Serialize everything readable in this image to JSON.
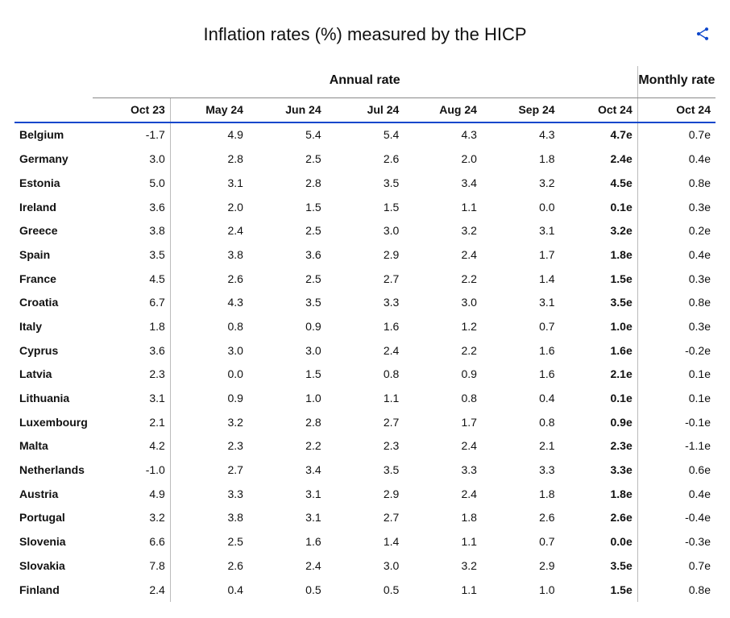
{
  "title": "Inflation rates (%) measured by the HICP",
  "groups": {
    "annual": "Annual rate",
    "monthly": "Monthly rate"
  },
  "columns": [
    "Oct 23",
    "May 24",
    "Jun 24",
    "Jul 24",
    "Aug 24",
    "Sep 24",
    "Oct 24",
    "Oct 24"
  ],
  "bold_data_col_index": 6,
  "rows": [
    {
      "country": "Belgium",
      "values": [
        "-1.7",
        "4.9",
        "5.4",
        "5.4",
        "4.3",
        "4.3",
        "4.7e",
        "0.7e"
      ]
    },
    {
      "country": "Germany",
      "values": [
        "3.0",
        "2.8",
        "2.5",
        "2.6",
        "2.0",
        "1.8",
        "2.4e",
        "0.4e"
      ]
    },
    {
      "country": "Estonia",
      "values": [
        "5.0",
        "3.1",
        "2.8",
        "3.5",
        "3.4",
        "3.2",
        "4.5e",
        "0.8e"
      ]
    },
    {
      "country": "Ireland",
      "values": [
        "3.6",
        "2.0",
        "1.5",
        "1.5",
        "1.1",
        "0.0",
        "0.1e",
        "0.3e"
      ]
    },
    {
      "country": "Greece",
      "values": [
        "3.8",
        "2.4",
        "2.5",
        "3.0",
        "3.2",
        "3.1",
        "3.2e",
        "0.2e"
      ]
    },
    {
      "country": "Spain",
      "values": [
        "3.5",
        "3.8",
        "3.6",
        "2.9",
        "2.4",
        "1.7",
        "1.8e",
        "0.4e"
      ]
    },
    {
      "country": "France",
      "values": [
        "4.5",
        "2.6",
        "2.5",
        "2.7",
        "2.2",
        "1.4",
        "1.5e",
        "0.3e"
      ]
    },
    {
      "country": "Croatia",
      "values": [
        "6.7",
        "4.3",
        "3.5",
        "3.3",
        "3.0",
        "3.1",
        "3.5e",
        "0.8e"
      ]
    },
    {
      "country": "Italy",
      "values": [
        "1.8",
        "0.8",
        "0.9",
        "1.6",
        "1.2",
        "0.7",
        "1.0e",
        "0.3e"
      ]
    },
    {
      "country": "Cyprus",
      "values": [
        "3.6",
        "3.0",
        "3.0",
        "2.4",
        "2.2",
        "1.6",
        "1.6e",
        "-0.2e"
      ]
    },
    {
      "country": "Latvia",
      "values": [
        "2.3",
        "0.0",
        "1.5",
        "0.8",
        "0.9",
        "1.6",
        "2.1e",
        "0.1e"
      ]
    },
    {
      "country": "Lithuania",
      "values": [
        "3.1",
        "0.9",
        "1.0",
        "1.1",
        "0.8",
        "0.4",
        "0.1e",
        "0.1e"
      ]
    },
    {
      "country": "Luxembourg",
      "values": [
        "2.1",
        "3.2",
        "2.8",
        "2.7",
        "1.7",
        "0.8",
        "0.9e",
        "-0.1e"
      ]
    },
    {
      "country": "Malta",
      "values": [
        "4.2",
        "2.3",
        "2.2",
        "2.3",
        "2.4",
        "2.1",
        "2.3e",
        "-1.1e"
      ]
    },
    {
      "country": "Netherlands",
      "values": [
        "-1.0",
        "2.7",
        "3.4",
        "3.5",
        "3.3",
        "3.3",
        "3.3e",
        "0.6e"
      ]
    },
    {
      "country": "Austria",
      "values": [
        "4.9",
        "3.3",
        "3.1",
        "2.9",
        "2.4",
        "1.8",
        "1.8e",
        "0.4e"
      ]
    },
    {
      "country": "Portugal",
      "values": [
        "3.2",
        "3.8",
        "3.1",
        "2.7",
        "1.8",
        "2.6",
        "2.6e",
        "-0.4e"
      ]
    },
    {
      "country": "Slovenia",
      "values": [
        "6.6",
        "2.5",
        "1.6",
        "1.4",
        "1.1",
        "0.7",
        "0.0e",
        "-0.3e"
      ]
    },
    {
      "country": "Slovakia",
      "values": [
        "7.8",
        "2.6",
        "2.4",
        "3.0",
        "3.2",
        "2.9",
        "3.5e",
        "0.7e"
      ]
    },
    {
      "country": "Finland",
      "values": [
        "2.4",
        "0.4",
        "0.5",
        "0.5",
        "1.1",
        "1.0",
        "1.5e",
        "0.8e"
      ]
    }
  ],
  "colors": {
    "accent": "#0e47cb",
    "grid": "#bbb"
  }
}
